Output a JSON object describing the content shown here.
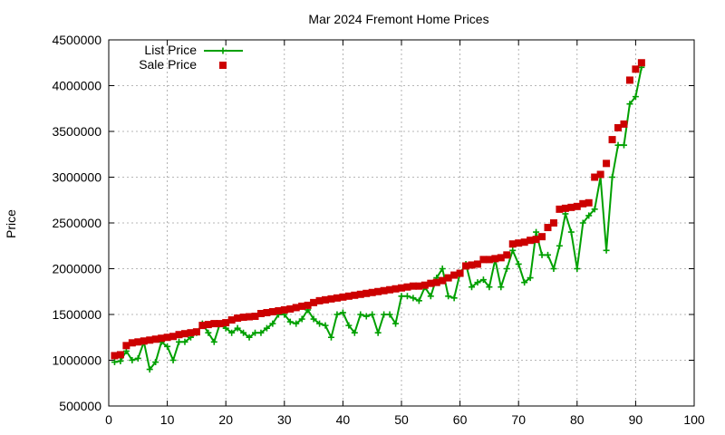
{
  "chart_data": {
    "type": "line",
    "title": "Mar 2024 Fremont Home Prices",
    "xlabel": "",
    "ylabel": "Price",
    "xlim": [
      0,
      100
    ],
    "ylim": [
      500000,
      4500000
    ],
    "xticks": [
      0,
      10,
      20,
      30,
      40,
      50,
      60,
      70,
      80,
      90,
      100
    ],
    "yticks": [
      500000,
      1000000,
      1500000,
      2000000,
      2500000,
      3000000,
      3500000,
      4000000,
      4500000
    ],
    "grid": true,
    "legend_position": "top-left",
    "colors": {
      "list": "#00a000",
      "sale": "#cc0000"
    },
    "series": [
      {
        "name": "List Price",
        "style": "line-plus",
        "x": [
          1,
          2,
          3,
          4,
          5,
          6,
          7,
          8,
          9,
          10,
          11,
          12,
          13,
          14,
          15,
          16,
          17,
          18,
          19,
          20,
          21,
          22,
          23,
          24,
          25,
          26,
          27,
          28,
          29,
          30,
          31,
          32,
          33,
          34,
          35,
          36,
          37,
          38,
          39,
          40,
          41,
          42,
          43,
          44,
          45,
          46,
          47,
          48,
          49,
          50,
          51,
          52,
          53,
          54,
          55,
          56,
          57,
          58,
          59,
          60,
          61,
          62,
          63,
          64,
          65,
          66,
          67,
          68,
          69,
          70,
          71,
          72,
          73,
          74,
          75,
          76,
          77,
          78,
          79,
          80,
          81,
          82,
          83,
          84,
          85,
          86,
          87,
          88,
          89,
          90,
          91
        ],
        "values": [
          980000,
          990000,
          1100000,
          1000000,
          1020000,
          1200000,
          900000,
          980000,
          1200000,
          1150000,
          1000000,
          1200000,
          1200000,
          1250000,
          1300000,
          1400000,
          1300000,
          1200000,
          1400000,
          1350000,
          1300000,
          1350000,
          1300000,
          1250000,
          1300000,
          1300000,
          1350000,
          1400000,
          1500000,
          1500000,
          1420000,
          1400000,
          1450000,
          1550000,
          1450000,
          1400000,
          1380000,
          1250000,
          1500000,
          1520000,
          1380000,
          1300000,
          1500000,
          1480000,
          1500000,
          1300000,
          1500000,
          1500000,
          1400000,
          1700000,
          1700000,
          1680000,
          1650000,
          1800000,
          1700000,
          1900000,
          2000000,
          1700000,
          1680000,
          1950000,
          2050000,
          1800000,
          1850000,
          1880000,
          1800000,
          2100000,
          1800000,
          2000000,
          2200000,
          2050000,
          1850000,
          1900000,
          2400000,
          2150000,
          2150000,
          2000000,
          2250000,
          2600000,
          2400000,
          2000000,
          2500000,
          2580000,
          2650000,
          3000000,
          2200000,
          3000000,
          3350000,
          3350000,
          3800000,
          3880000,
          4200000
        ]
      },
      {
        "name": "Sale Price",
        "style": "square",
        "x": [
          1,
          2,
          3,
          4,
          5,
          6,
          7,
          8,
          9,
          10,
          11,
          12,
          13,
          14,
          15,
          16,
          17,
          18,
          19,
          20,
          21,
          22,
          23,
          24,
          25,
          26,
          27,
          28,
          29,
          30,
          31,
          32,
          33,
          34,
          35,
          36,
          37,
          38,
          39,
          40,
          41,
          42,
          43,
          44,
          45,
          46,
          47,
          48,
          49,
          50,
          51,
          52,
          53,
          54,
          55,
          56,
          57,
          58,
          59,
          60,
          61,
          62,
          63,
          64,
          65,
          66,
          67,
          68,
          69,
          70,
          71,
          72,
          73,
          74,
          75,
          76,
          77,
          78,
          79,
          80,
          81,
          82,
          83,
          84,
          85,
          86,
          87,
          88,
          89,
          90,
          91
        ],
        "values": [
          1050000,
          1060000,
          1160000,
          1190000,
          1200000,
          1210000,
          1220000,
          1230000,
          1240000,
          1250000,
          1260000,
          1280000,
          1290000,
          1300000,
          1310000,
          1380000,
          1390000,
          1400000,
          1400000,
          1410000,
          1440000,
          1460000,
          1470000,
          1475000,
          1480000,
          1510000,
          1520000,
          1530000,
          1540000,
          1550000,
          1560000,
          1575000,
          1590000,
          1600000,
          1630000,
          1650000,
          1660000,
          1670000,
          1680000,
          1690000,
          1700000,
          1710000,
          1720000,
          1730000,
          1740000,
          1750000,
          1760000,
          1770000,
          1780000,
          1790000,
          1800000,
          1810000,
          1810000,
          1820000,
          1840000,
          1850000,
          1870000,
          1900000,
          1930000,
          1950000,
          2030000,
          2040000,
          2050000,
          2100000,
          2100000,
          2110000,
          2120000,
          2150000,
          2270000,
          2280000,
          2290000,
          2310000,
          2320000,
          2350000,
          2450000,
          2500000,
          2650000,
          2660000,
          2670000,
          2680000,
          2710000,
          2720000,
          3000000,
          3030000,
          3150000,
          3410000,
          3540000,
          3580000,
          4060000,
          4180000,
          4250000
        ]
      }
    ]
  }
}
